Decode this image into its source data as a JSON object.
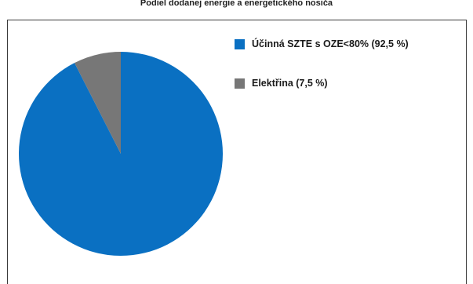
{
  "chart_data": {
    "type": "pie",
    "title": "Podiel dodanej energie a energetického nosiča",
    "slices": [
      {
        "label": "Účinná SZTE s OZE<80% (92,5 %)",
        "value": 92.5,
        "color": "#0a70c2"
      },
      {
        "label": "Elektřina (7,5 %)",
        "value": 7.5,
        "color": "#777777"
      }
    ],
    "legend_position": "right"
  }
}
